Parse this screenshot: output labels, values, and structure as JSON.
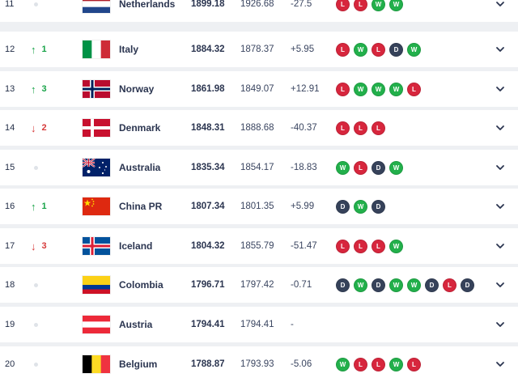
{
  "rankings": [
    {
      "rank": "11",
      "movement": {
        "dir": "none",
        "value": ""
      },
      "flag": "netherlands",
      "country": "Netherlands",
      "points": "1899.18",
      "previous": "1926.68",
      "diff": "-27.5",
      "results": [
        "L",
        "L",
        "W",
        "W"
      ]
    },
    {
      "rank": "12",
      "movement": {
        "dir": "up",
        "value": "1"
      },
      "flag": "italy",
      "country": "Italy",
      "points": "1884.32",
      "previous": "1878.37",
      "diff": "+5.95",
      "results": [
        "L",
        "W",
        "L",
        "D",
        "W"
      ]
    },
    {
      "rank": "13",
      "movement": {
        "dir": "up",
        "value": "3"
      },
      "flag": "norway",
      "country": "Norway",
      "points": "1861.98",
      "previous": "1849.07",
      "diff": "+12.91",
      "results": [
        "L",
        "W",
        "W",
        "W",
        "L"
      ]
    },
    {
      "rank": "14",
      "movement": {
        "dir": "down",
        "value": "2"
      },
      "flag": "denmark",
      "country": "Denmark",
      "points": "1848.31",
      "previous": "1888.68",
      "diff": "-40.37",
      "results": [
        "L",
        "L",
        "L"
      ]
    },
    {
      "rank": "15",
      "movement": {
        "dir": "none",
        "value": ""
      },
      "flag": "australia",
      "country": "Australia",
      "points": "1835.34",
      "previous": "1854.17",
      "diff": "-18.83",
      "results": [
        "W",
        "L",
        "D",
        "W"
      ]
    },
    {
      "rank": "16",
      "movement": {
        "dir": "up",
        "value": "1"
      },
      "flag": "china",
      "country": "China PR",
      "points": "1807.34",
      "previous": "1801.35",
      "diff": "+5.99",
      "results": [
        "D",
        "W",
        "D"
      ]
    },
    {
      "rank": "17",
      "movement": {
        "dir": "down",
        "value": "3"
      },
      "flag": "iceland",
      "country": "Iceland",
      "points": "1804.32",
      "previous": "1855.79",
      "diff": "-51.47",
      "results": [
        "L",
        "L",
        "L",
        "W"
      ]
    },
    {
      "rank": "18",
      "movement": {
        "dir": "none",
        "value": ""
      },
      "flag": "colombia",
      "country": "Colombia",
      "points": "1796.71",
      "previous": "1797.42",
      "diff": "-0.71",
      "results": [
        "D",
        "W",
        "D",
        "W",
        "W",
        "D",
        "L",
        "D"
      ]
    },
    {
      "rank": "19",
      "movement": {
        "dir": "none",
        "value": ""
      },
      "flag": "austria",
      "country": "Austria",
      "points": "1794.41",
      "previous": "1794.41",
      "diff": "-",
      "results": []
    },
    {
      "rank": "20",
      "movement": {
        "dir": "none",
        "value": ""
      },
      "flag": "belgium",
      "country": "Belgium",
      "points": "1788.87",
      "previous": "1793.93",
      "diff": "-5.06",
      "results": [
        "W",
        "L",
        "L",
        "W",
        "L"
      ]
    }
  ],
  "icons": {
    "up": "arrow-up-icon",
    "down": "arrow-down-icon",
    "expand": "chevron-down-icon"
  },
  "colors": {
    "win": "#22b04b",
    "loss": "#d7263d",
    "draw": "#36425a",
    "up": "#18a348",
    "down": "#d63a3a"
  }
}
